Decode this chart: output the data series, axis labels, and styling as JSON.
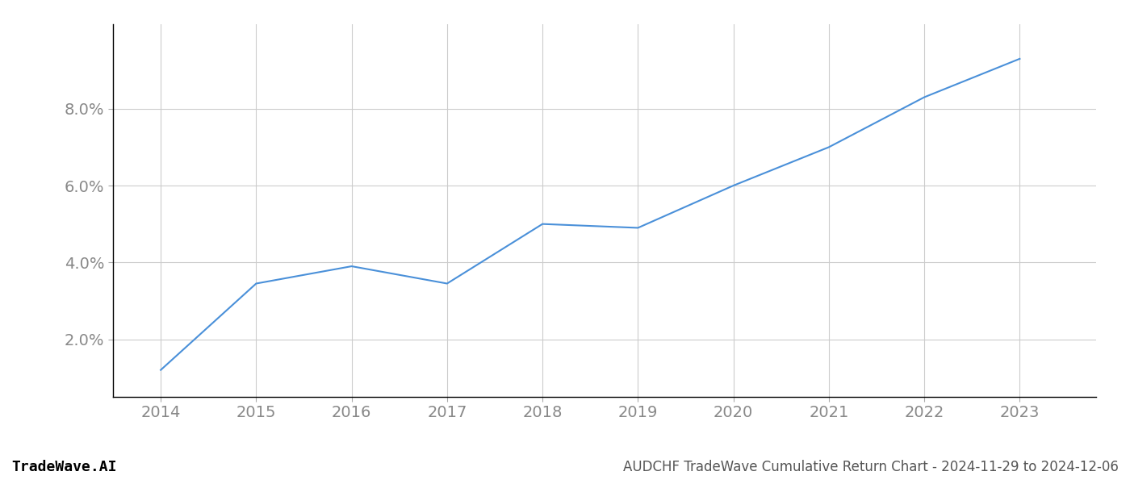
{
  "x_values": [
    2014,
    2015,
    2016,
    2017,
    2018,
    2019,
    2020,
    2021,
    2022,
    2023
  ],
  "y_values": [
    1.2,
    3.45,
    3.9,
    3.45,
    5.0,
    4.9,
    6.0,
    7.0,
    8.3,
    9.3
  ],
  "line_color": "#4a90d9",
  "line_width": 1.5,
  "background_color": "#ffffff",
  "grid_color": "#cccccc",
  "title": "AUDCHF TradeWave Cumulative Return Chart - 2024-11-29 to 2024-12-06",
  "watermark": "TradeWave.AI",
  "xlim": [
    2013.5,
    2023.8
  ],
  "ylim": [
    0.5,
    10.2
  ],
  "yticks": [
    2.0,
    4.0,
    6.0,
    8.0
  ],
  "xticks": [
    2014,
    2015,
    2016,
    2017,
    2018,
    2019,
    2020,
    2021,
    2022,
    2023
  ],
  "tick_label_color": "#888888",
  "title_color": "#555555",
  "watermark_color": "#000000",
  "title_fontsize": 12,
  "tick_fontsize": 14,
  "watermark_fontsize": 13
}
